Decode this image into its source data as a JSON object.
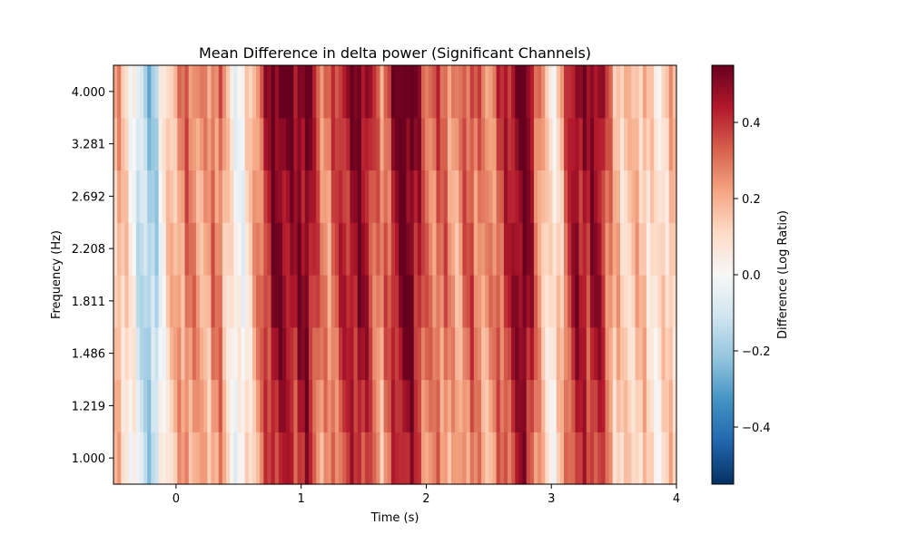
{
  "chart_data": {
    "type": "heatmap",
    "title": "Mean Difference in delta power (Significant Channels)",
    "xlabel": "Time (s)",
    "ylabel": "Frequency (Hz)",
    "xlim": [
      -0.5,
      4.0
    ],
    "x_ticks": [
      "0",
      "1",
      "2",
      "3",
      "4"
    ],
    "x_tick_values": [
      0,
      1,
      2,
      3,
      4
    ],
    "frequencies": [
      1.0,
      1.219,
      1.486,
      1.811,
      2.208,
      2.692,
      3.281,
      4.0
    ],
    "y_ticks": [
      "1.000",
      "1.219",
      "1.486",
      "1.811",
      "2.208",
      "2.692",
      "3.281",
      "4.000"
    ],
    "colorbar": {
      "label": "Difference (Log Ratio)",
      "vmin": -0.55,
      "vmax": 0.55,
      "ticks": [
        "−0.4",
        "−0.2",
        "0.0",
        "0.2",
        "0.4"
      ],
      "tick_values": [
        -0.4,
        -0.2,
        0.0,
        0.2,
        0.4
      ],
      "colormap": "RdBu_r"
    },
    "time_profile": {
      "t": [
        -0.5,
        -0.45,
        -0.4,
        -0.35,
        -0.3,
        -0.25,
        -0.2,
        -0.15,
        -0.1,
        -0.05,
        0.0,
        0.05,
        0.1,
        0.15,
        0.2,
        0.25,
        0.3,
        0.35,
        0.4,
        0.45,
        0.5,
        0.55,
        0.6,
        0.65,
        0.7,
        0.75,
        0.8,
        0.85,
        0.9,
        0.95,
        1.0,
        1.05,
        1.1,
        1.15,
        1.2,
        1.25,
        1.3,
        1.35,
        1.4,
        1.45,
        1.5,
        1.55,
        1.6,
        1.65,
        1.7,
        1.75,
        1.8,
        1.85,
        1.9,
        1.95,
        2.0,
        2.05,
        2.1,
        2.15,
        2.2,
        2.25,
        2.3,
        2.35,
        2.4,
        2.45,
        2.5,
        2.55,
        2.6,
        2.65,
        2.7,
        2.75,
        2.8,
        2.85,
        2.9,
        2.95,
        3.0,
        3.05,
        3.1,
        3.15,
        3.2,
        3.25,
        3.3,
        3.35,
        3.4,
        3.45,
        3.5,
        3.55,
        3.6,
        3.65,
        3.7,
        3.75,
        3.8,
        3.85,
        3.9,
        3.95,
        4.0
      ],
      "values": [
        0.15,
        0.2,
        0.1,
        0.05,
        -0.1,
        -0.15,
        -0.2,
        -0.12,
        0.05,
        0.15,
        0.2,
        0.25,
        0.3,
        0.25,
        0.22,
        0.2,
        0.28,
        0.3,
        0.15,
        0.05,
        -0.02,
        0.03,
        0.15,
        0.25,
        0.35,
        0.45,
        0.52,
        0.5,
        0.48,
        0.45,
        0.5,
        0.52,
        0.4,
        0.3,
        0.25,
        0.3,
        0.38,
        0.42,
        0.45,
        0.5,
        0.48,
        0.4,
        0.3,
        0.25,
        0.35,
        0.45,
        0.52,
        0.55,
        0.5,
        0.4,
        0.3,
        0.28,
        0.32,
        0.3,
        0.25,
        0.2,
        0.3,
        0.35,
        0.3,
        0.25,
        0.22,
        0.3,
        0.35,
        0.4,
        0.45,
        0.53,
        0.55,
        0.4,
        0.25,
        0.15,
        0.05,
        0.1,
        0.25,
        0.4,
        0.48,
        0.45,
        0.42,
        0.48,
        0.45,
        0.3,
        0.2,
        0.15,
        0.12,
        0.15,
        0.18,
        0.15,
        0.1,
        0.05,
        0.12,
        0.15,
        0.18
      ]
    },
    "freq_scale": [
      0.85,
      0.9,
      0.95,
      1.0,
      1.0,
      1.0,
      1.05,
      1.1
    ]
  }
}
